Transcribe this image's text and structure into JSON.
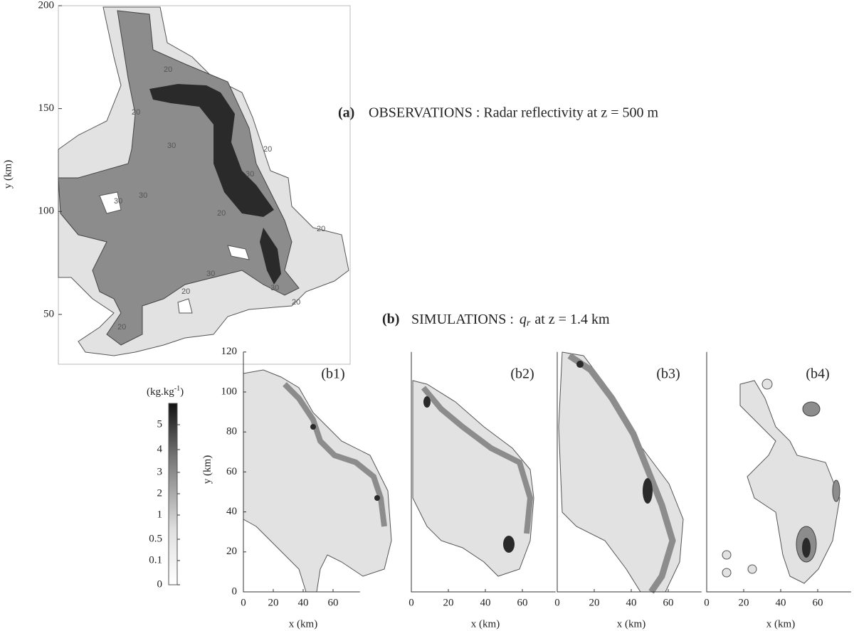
{
  "panel_a": {
    "label": "(a)",
    "title": "OBSERVATIONS : Radar reflectivity at z = 500 m",
    "y_label": "y (km)",
    "yticks": [
      50,
      100,
      150,
      200
    ],
    "contour_labels": [
      "20",
      "20",
      "30",
      "30",
      "30",
      "20",
      "30",
      "20",
      "30",
      "30",
      "20",
      "20",
      "20",
      "20"
    ]
  },
  "panel_b": {
    "label": "(b)",
    "title_prefix": "SIMULATIONS :",
    "title_var": "q",
    "title_sub": "r",
    "title_suffix": "at z = 1.4 km",
    "y_label": "y (km)",
    "yticks": [
      0,
      20,
      40,
      60,
      80,
      100,
      120
    ],
    "xticks": [
      0,
      20,
      40,
      60
    ],
    "subpanels": [
      {
        "label": "(b1)",
        "x_label": "x (km)"
      },
      {
        "label": "(b2)",
        "x_label": "x (km)"
      },
      {
        "label": "(b3)",
        "x_label": "x (km)"
      },
      {
        "label": "(b4)",
        "x_label": "x (km)"
      }
    ]
  },
  "colorbar": {
    "unit": "(kg.kg",
    "unit_sup": "-1",
    "unit_close": ")",
    "ticks": [
      "5",
      "4",
      "3",
      "2",
      "1",
      "0.5",
      "0.1",
      "0"
    ]
  }
}
